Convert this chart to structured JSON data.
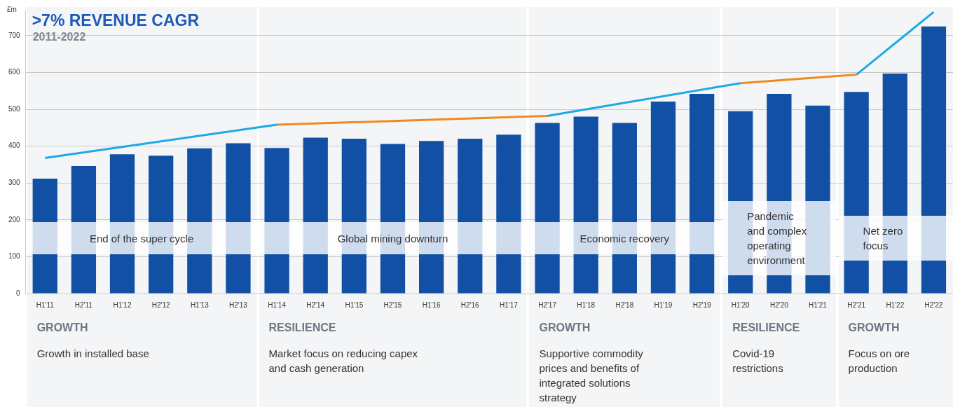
{
  "chart_data": {
    "type": "bar",
    "title": ">7% REVENUE CAGR",
    "subtitle": "2011-2022",
    "ylabel": "£m",
    "categories": [
      "H1'11",
      "H2'11",
      "H1'12",
      "H2'12",
      "H1'13",
      "H2'13",
      "H1'14",
      "H2'14",
      "H1'15",
      "H2'15",
      "H1'16",
      "H2'16",
      "H1'17",
      "H2'17",
      "H1'18",
      "H2'18",
      "H1'19",
      "H2'19",
      "H1'20",
      "H2'20",
      "H1'21",
      "H2'21",
      "H1'22",
      "H2'22"
    ],
    "series": [
      {
        "color": "#1150a4",
        "values": [
          312,
          346,
          378,
          374,
          394,
          408,
          395,
          423,
          420,
          406,
          414,
          420,
          431,
          463,
          480,
          463,
          521,
          542,
          495,
          542,
          510,
          547,
          597,
          725
        ]
      },
      {
        "type": "line",
        "color": "#1ca9e6",
        "values": [
          368,
          null,
          null,
          null,
          null,
          null,
          458,
          null,
          null,
          null,
          null,
          null,
          null,
          null,
          null,
          null,
          null,
          null,
          null,
          null,
          null,
          null,
          null,
          null
        ]
      },
      {
        "type": "line",
        "color": "#f08a1c",
        "values": [
          null,
          null,
          null,
          null,
          null,
          null,
          458,
          null,
          null,
          null,
          null,
          null,
          null,
          482,
          null,
          null,
          null,
          null,
          null,
          null,
          null,
          null,
          null,
          null
        ]
      },
      {
        "type": "line",
        "color": "#1ca9e6",
        "values": [
          null,
          null,
          null,
          null,
          null,
          null,
          null,
          null,
          null,
          null,
          null,
          null,
          null,
          482,
          null,
          null,
          null,
          null,
          571,
          null,
          null,
          null,
          null,
          null
        ]
      },
      {
        "type": "line",
        "color": "#f08a1c",
        "values": [
          null,
          null,
          null,
          null,
          null,
          null,
          null,
          null,
          null,
          null,
          null,
          null,
          null,
          null,
          null,
          null,
          null,
          null,
          571,
          null,
          null,
          594,
          null,
          null
        ]
      },
      {
        "type": "line",
        "color": "#1ca9e6",
        "values": [
          null,
          null,
          null,
          null,
          null,
          null,
          null,
          null,
          null,
          null,
          null,
          null,
          null,
          null,
          null,
          null,
          null,
          null,
          null,
          null,
          null,
          594,
          null,
          764
        ]
      }
    ],
    "ylim": [
      0,
      770
    ],
    "yticks": [
      0,
      100,
      200,
      300,
      400,
      500,
      600,
      700
    ],
    "grid": "y",
    "annotations": [
      "End of the super cycle",
      "Global mining downturn",
      "Economic recovery",
      "Pandemic and complex operating environment",
      "Net zero focus",
      "GROWTH",
      "RESILIENCE",
      "GROWTH",
      "RESILIENCE",
      "GROWTH",
      "Growth in installed base",
      "Market focus on reducing capex and cash generation",
      "Supportive commodity prices and benefits of integrated solutions strategy",
      "Covid-19 restrictions",
      "Focus on ore production"
    ]
  }
}
